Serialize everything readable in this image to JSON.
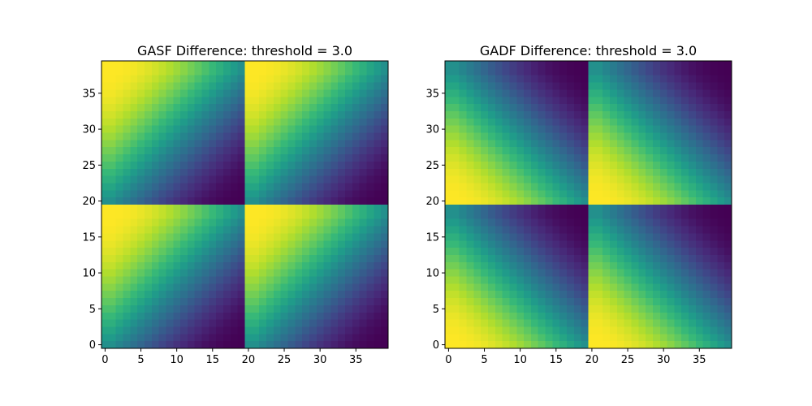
{
  "chart_data": [
    {
      "type": "heatmap",
      "title": "GASF Difference: threshold = 3.0",
      "xlabel": "",
      "ylabel": "",
      "size": 40,
      "xlim": [
        -0.5,
        39.5
      ],
      "ylim": [
        39.5,
        -0.5
      ],
      "xticks": [
        0,
        5,
        10,
        15,
        20,
        25,
        30,
        35
      ],
      "yticks": [
        0,
        5,
        10,
        15,
        20,
        25,
        30,
        35
      ],
      "value_range": [
        -1,
        1
      ],
      "colormap": "viridis",
      "grid": false,
      "formula": "gasf"
    },
    {
      "type": "heatmap",
      "title": "GADF Difference: threshold = 3.0",
      "xlabel": "",
      "ylabel": "",
      "size": 40,
      "xlim": [
        -0.5,
        39.5
      ],
      "ylim": [
        39.5,
        -0.5
      ],
      "xticks": [
        0,
        5,
        10,
        15,
        20,
        25,
        30,
        35
      ],
      "yticks": [
        0,
        5,
        10,
        15,
        20,
        25,
        30,
        35
      ],
      "value_range": [
        -1,
        1
      ],
      "colormap": "viridis",
      "grid": false,
      "formula": "gadf"
    }
  ]
}
